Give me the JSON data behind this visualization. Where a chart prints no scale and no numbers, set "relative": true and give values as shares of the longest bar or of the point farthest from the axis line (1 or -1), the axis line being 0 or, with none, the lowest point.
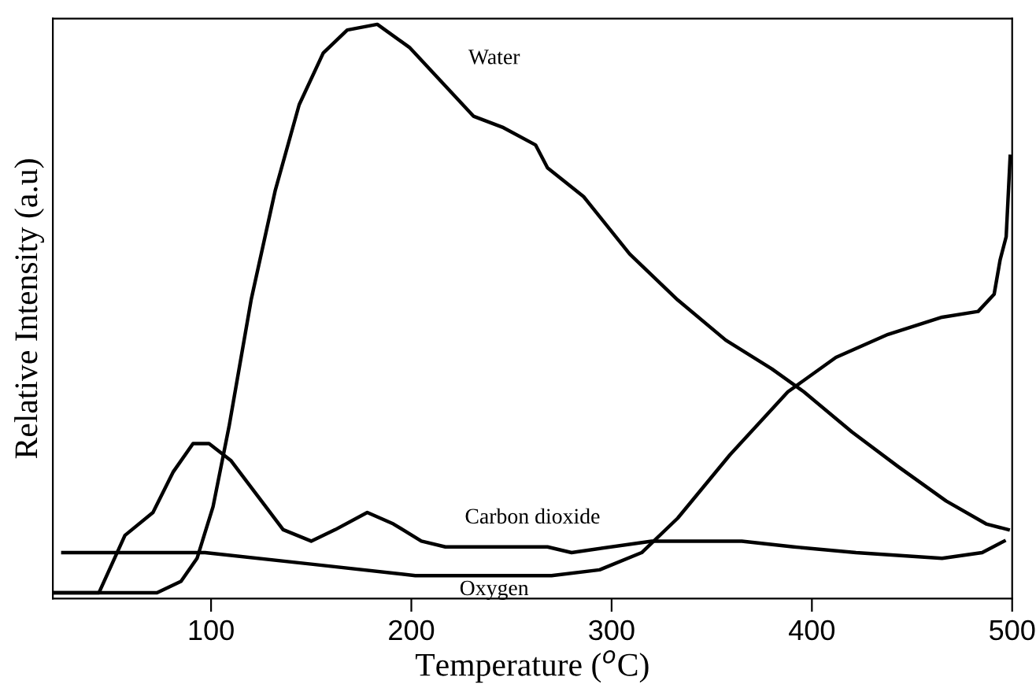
{
  "chart_data": {
    "type": "line",
    "relative": true,
    "xlabel": "Temperature ($^{o}$C)",
    "ylabel": "Relative Intensity (a.u)",
    "xlim": [
      21,
      500
    ],
    "xticks": [
      100,
      200,
      300,
      400,
      500
    ],
    "grid": false,
    "legend": false,
    "marker": "none",
    "line_style": "solid",
    "series": [
      {
        "name": "Water",
        "color": "#000000",
        "x": [
          22,
          73,
          85,
          93,
          101,
          109,
          120,
          132,
          144,
          156,
          168,
          183,
          199,
          215,
          231,
          246,
          262,
          268,
          286,
          309,
          333,
          357,
          380,
          396,
          420,
          443,
          467,
          487,
          498
        ],
        "values": [
          0.01,
          0.01,
          0.03,
          0.07,
          0.16,
          0.3,
          0.52,
          0.71,
          0.86,
          0.95,
          0.99,
          1.0,
          0.96,
          0.9,
          0.84,
          0.82,
          0.79,
          0.75,
          0.7,
          0.6,
          0.52,
          0.45,
          0.4,
          0.36,
          0.29,
          0.23,
          0.17,
          0.13,
          0.12
        ]
      },
      {
        "name": "Carbon dioxide",
        "color": "#000000",
        "x": [
          22,
          44,
          57,
          71,
          81,
          91,
          99,
          110,
          123,
          136,
          150,
          162,
          178,
          191,
          205,
          217,
          241,
          268,
          280,
          320,
          365,
          391,
          422,
          465,
          485,
          496
        ],
        "values": [
          0.01,
          0.01,
          0.11,
          0.15,
          0.22,
          0.27,
          0.27,
          0.24,
          0.18,
          0.12,
          0.1,
          0.12,
          0.15,
          0.13,
          0.1,
          0.09,
          0.09,
          0.09,
          0.08,
          0.1,
          0.1,
          0.09,
          0.08,
          0.07,
          0.08,
          0.1
        ]
      },
      {
        "name": "Oxygen",
        "color": "#000000",
        "x": [
          26,
          97,
          150,
          202,
          270,
          294,
          315,
          333,
          359,
          388,
          412,
          438,
          465,
          483,
          491,
          494,
          497,
          499
        ],
        "values": [
          0.08,
          0.08,
          0.06,
          0.04,
          0.04,
          0.05,
          0.08,
          0.14,
          0.25,
          0.36,
          0.42,
          0.46,
          0.49,
          0.5,
          0.53,
          0.59,
          0.63,
          0.77
        ]
      }
    ]
  }
}
